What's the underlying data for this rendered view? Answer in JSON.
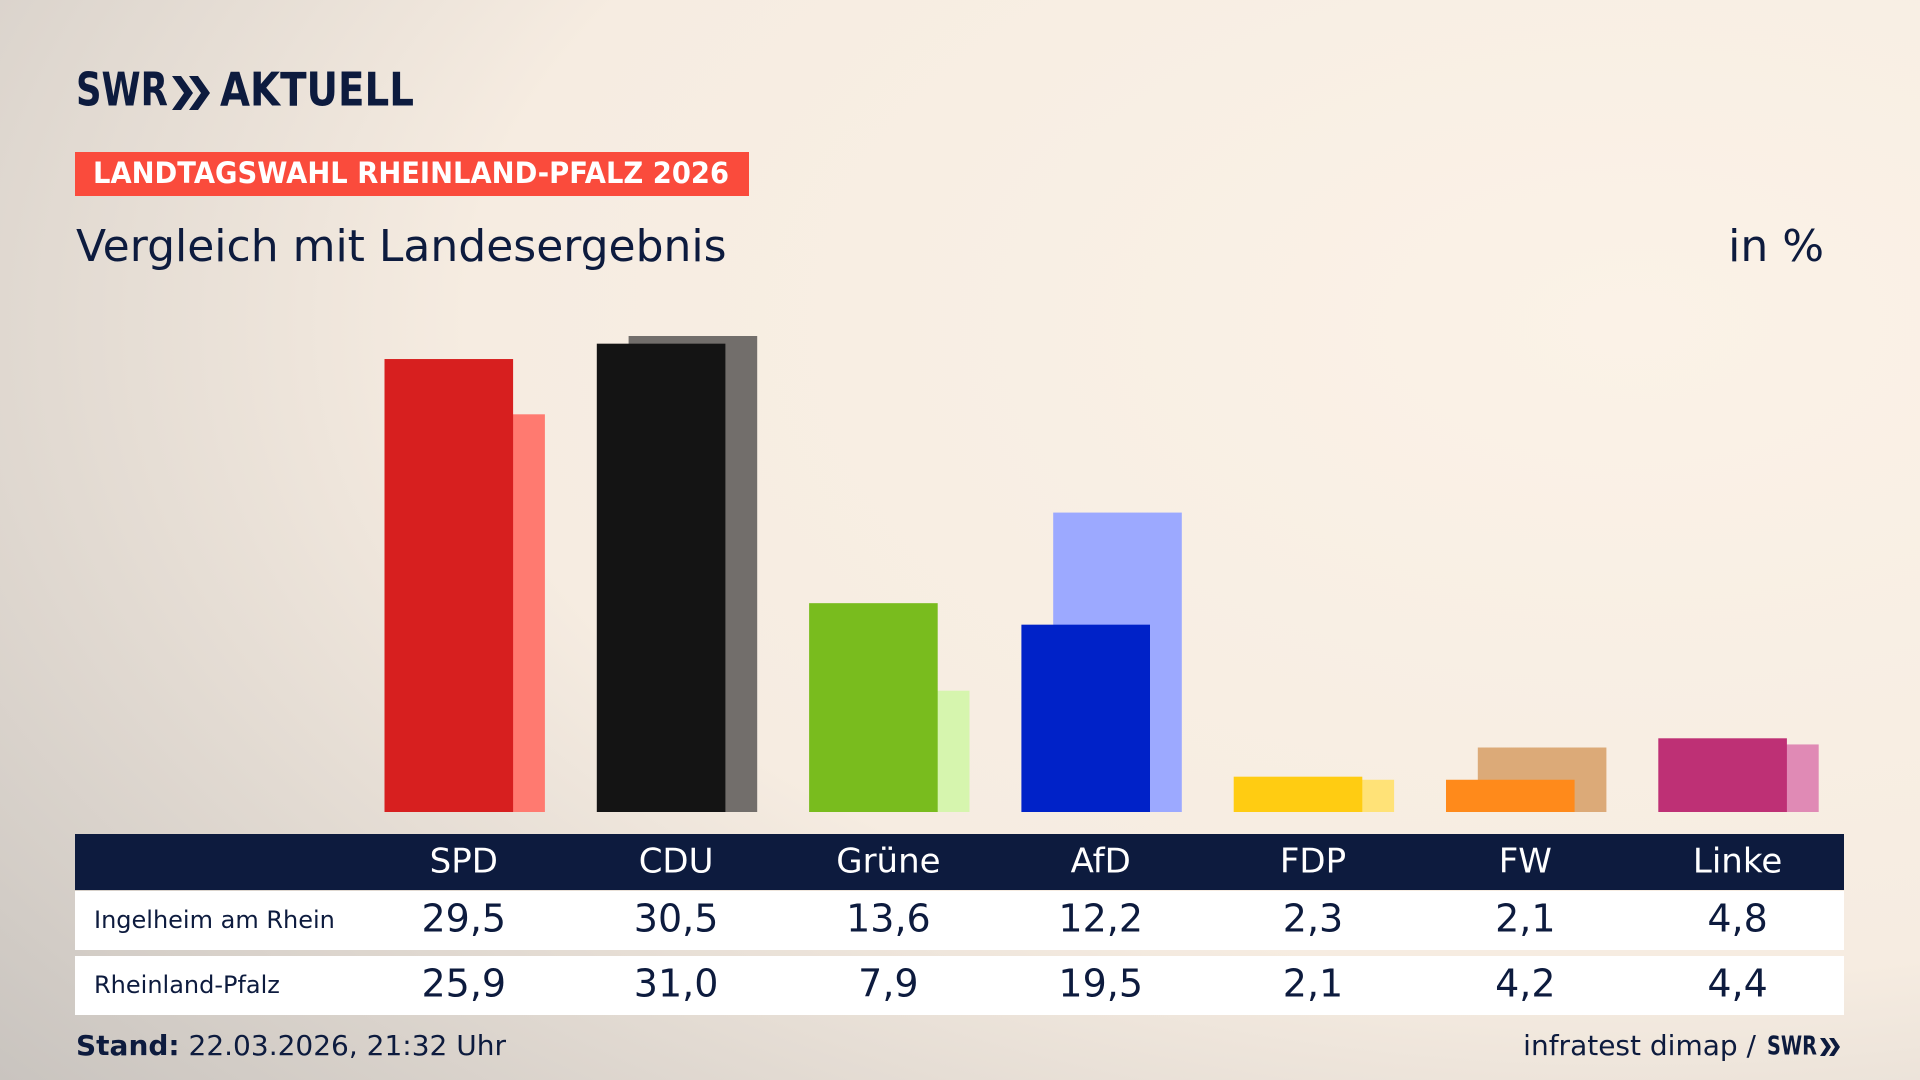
{
  "chart_data": {
    "type": "bar",
    "brand": "SWR",
    "brand_name": "AKTUELL",
    "kicker": "LANDTAGSWAHL RHEINLAND-PFALZ 2026",
    "title": "Vergleich mit Landesergebnis",
    "unit_label": "in %",
    "categories": [
      "SPD",
      "CDU",
      "Grüne",
      "AfD",
      "FDP",
      "FW",
      "Linke"
    ],
    "series": [
      {
        "name": "Ingelheim am Rhein",
        "colors": [
          "#d71f1f",
          "#141414",
          "#79bc1e",
          "#0022c8",
          "#ffcc12",
          "#ff8a1b",
          "#be3075"
        ],
        "values": [
          29.5,
          30.5,
          13.6,
          12.2,
          2.3,
          2.1,
          4.8
        ],
        "value_labels": [
          "29,5",
          "30,5",
          "13,6",
          "12,2",
          "2,3",
          "2,1",
          "4,8"
        ]
      },
      {
        "name": "Rheinland-Pfalz",
        "colors": [
          "#ff7a70",
          "#726e6b",
          "#d6f5ae",
          "#9ca9ff",
          "#ffe277",
          "#dcaa78",
          "#e08ab5"
        ],
        "values": [
          25.9,
          31.0,
          7.9,
          19.5,
          2.1,
          4.2,
          4.4
        ],
        "value_labels": [
          "25,9",
          "31,0",
          "7,9",
          "19,5",
          "2,1",
          "4,2",
          "4,4"
        ]
      }
    ],
    "stand_label": "Stand:",
    "stand": "22.03.2026, 21:32 Uhr",
    "source": "infratest dimap /"
  }
}
